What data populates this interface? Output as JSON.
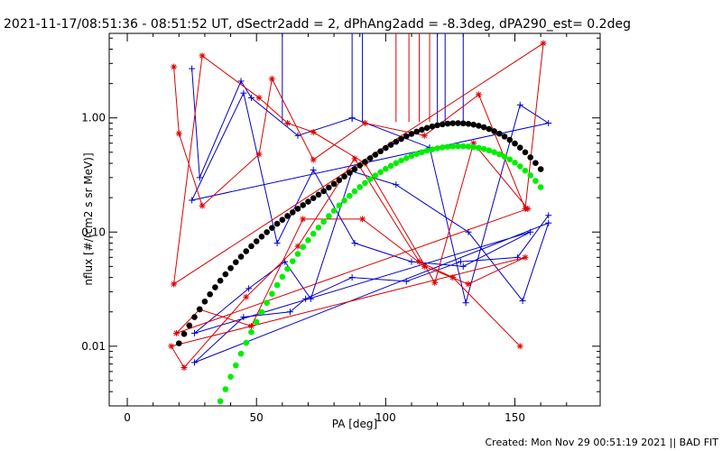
{
  "chart_data": {
    "type": "scatter",
    "title": "2021-11-17/08:51:36 - 08:51:52 UT, dSectr2add = 2, dPhAng2add = -8.3deg, dPA290_est=  0.2deg",
    "xlabel": "PA [deg]",
    "ylabel": "nflux [#/(cm2 s sr MeV)]",
    "xlim": [
      -7,
      183
    ],
    "ylim": [
      0.003,
      5.5
    ],
    "yscale": "log",
    "xticks": [
      0,
      50,
      100,
      150
    ],
    "xtick_labels": [
      "0",
      "50",
      "100",
      "150"
    ],
    "yticks": [
      0.01,
      0.1,
      1.0
    ],
    "ytick_labels": [
      "0.01",
      "0.10",
      "1.00"
    ],
    "footer": "Created: Mon Nov 29 00:51:19 2021 || BAD FIT",
    "colors": {
      "blue": "#0000cc",
      "red": "#dd0000",
      "black": "#000000",
      "green": "#00ee00"
    },
    "series": [
      {
        "color": "#0000cc",
        "marker": "plus",
        "x": [
          25,
          28,
          44,
          48,
          66,
          87,
          117,
          131,
          152,
          163,
          25,
          45,
          58,
          72,
          88,
          110,
          130,
          156,
          26,
          47,
          61,
          71,
          87,
          104,
          132,
          153,
          163,
          26,
          45,
          63,
          69,
          87,
          108,
          129,
          151,
          163
        ],
        "y": [
          2.7,
          0.3,
          2.1,
          1.5,
          0.7,
          1.0,
          0.55,
          0.024,
          1.3,
          0.9,
          0.19,
          1.65,
          0.08,
          0.35,
          0.08,
          0.055,
          0.05,
          0.1,
          0.013,
          0.032,
          0.055,
          0.026,
          0.34,
          0.26,
          0.1,
          0.025,
          0.12,
          0.0072,
          0.018,
          0.02,
          0.026,
          0.04,
          0.037,
          0.055,
          0.06,
          0.14
        ],
        "spikes_x": [
          60,
          87,
          91,
          120,
          123,
          130
        ]
      },
      {
        "color": "#dd0000",
        "marker": "asterisk",
        "x": [
          18,
          20,
          29,
          51,
          56,
          72,
          92,
          115,
          136,
          154,
          161,
          18,
          29,
          51,
          62,
          72,
          92,
          119,
          134,
          155,
          19,
          28,
          48,
          68,
          91,
          115,
          132,
          154,
          17,
          22,
          46,
          66,
          88,
          113,
          126,
          152
        ],
        "y": [
          2.8,
          0.73,
          0.17,
          0.48,
          2.2,
          0.43,
          0.9,
          0.7,
          1.6,
          0.16,
          4.5,
          0.035,
          3.5,
          1.5,
          0.9,
          0.75,
          0.4,
          0.036,
          0.6,
          0.16,
          0.013,
          0.021,
          0.015,
          0.13,
          0.13,
          0.05,
          0.035,
          0.06,
          0.01,
          0.0065,
          0.027,
          0.075,
          0.44,
          0.055,
          0.04,
          0.01
        ],
        "spikes_x": [
          104,
          109,
          113,
          117
        ]
      },
      {
        "color": "#000000",
        "marker": "filled-circle",
        "x": [
          20,
          22,
          24,
          26,
          28,
          30,
          32,
          34,
          36,
          38,
          40,
          42,
          44,
          46,
          48,
          50,
          52,
          54,
          56,
          58,
          60,
          62,
          64,
          66,
          68,
          70,
          72,
          74,
          76,
          78,
          80,
          82,
          84,
          86,
          88,
          90,
          92,
          94,
          96,
          98,
          100,
          102,
          104,
          106,
          108,
          110,
          112,
          114,
          116,
          118,
          120,
          122,
          124,
          126,
          128,
          130,
          132,
          134,
          136,
          138,
          140,
          142,
          144,
          146,
          148,
          150,
          152,
          154,
          156,
          158,
          160
        ],
        "y": [
          0.0106,
          0.0128,
          0.0152,
          0.018,
          0.0211,
          0.0246,
          0.0285,
          0.0328,
          0.0375,
          0.0427,
          0.0483,
          0.0544,
          0.0609,
          0.0679,
          0.0752,
          0.083,
          0.0912,
          0.0998,
          0.1088,
          0.1182,
          0.128,
          0.1382,
          0.1489,
          0.1601,
          0.172,
          0.1846,
          0.1981,
          0.2126,
          0.2283,
          0.2454,
          0.2641,
          0.2844,
          0.3065,
          0.3303,
          0.3559,
          0.3833,
          0.4125,
          0.4434,
          0.4758,
          0.5097,
          0.5448,
          0.5807,
          0.6171,
          0.6536,
          0.6895,
          0.7243,
          0.7574,
          0.7884,
          0.8165,
          0.8413,
          0.8622,
          0.8789,
          0.8908,
          0.8978,
          0.8995,
          0.8959,
          0.8868,
          0.8724,
          0.8527,
          0.8281,
          0.7987,
          0.765,
          0.7274,
          0.6864,
          0.6425,
          0.5964,
          0.5487,
          0.5001,
          0.4512,
          0.4027,
          0.3554
        ]
      },
      {
        "color": "#00ee00",
        "marker": "filled-circle",
        "x": [
          36,
          38,
          40,
          42,
          44,
          46,
          48,
          50,
          52,
          54,
          56,
          58,
          60,
          62,
          64,
          66,
          68,
          70,
          72,
          74,
          76,
          78,
          80,
          82,
          84,
          86,
          88,
          90,
          92,
          94,
          96,
          98,
          100,
          102,
          104,
          106,
          108,
          110,
          112,
          114,
          116,
          118,
          120,
          122,
          124,
          126,
          128,
          130,
          132,
          134,
          136,
          138,
          140,
          142,
          144,
          146,
          148,
          150,
          152,
          154,
          156,
          158,
          160
        ],
        "y": [
          0.0033,
          0.0042,
          0.0054,
          0.0068,
          0.0086,
          0.0107,
          0.0133,
          0.0163,
          0.0199,
          0.024,
          0.0288,
          0.0343,
          0.0406,
          0.0476,
          0.0555,
          0.0643,
          0.0741,
          0.0848,
          0.0966,
          0.1094,
          0.1232,
          0.1381,
          0.154,
          0.1709,
          0.1888,
          0.2076,
          0.2273,
          0.2478,
          0.2689,
          0.2906,
          0.3127,
          0.3351,
          0.3576,
          0.3799,
          0.402,
          0.4236,
          0.4444,
          0.4642,
          0.4829,
          0.5002,
          0.5158,
          0.5296,
          0.5414,
          0.551,
          0.5583,
          0.563,
          0.5651,
          0.5645,
          0.5611,
          0.5548,
          0.5456,
          0.5336,
          0.5187,
          0.501,
          0.4807,
          0.4579,
          0.4327,
          0.4054,
          0.3762,
          0.3454,
          0.3134,
          0.2806,
          0.2473
        ]
      }
    ]
  }
}
